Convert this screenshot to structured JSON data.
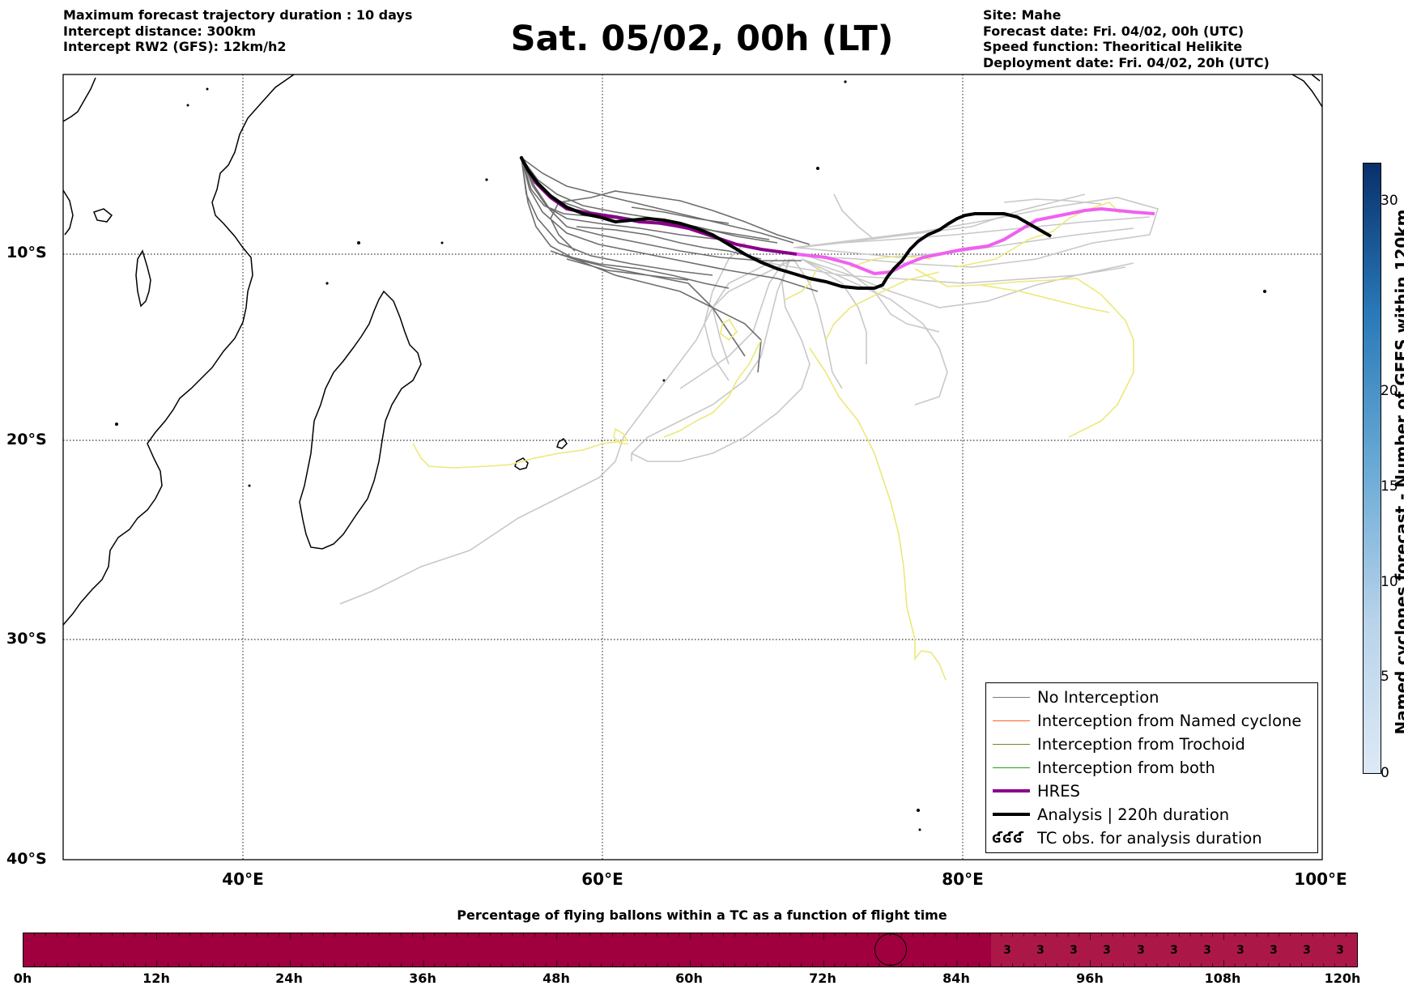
{
  "header": {
    "left": [
      "Maximum forecast trajectory duration : 10 days",
      "Intercept distance: 300km",
      "Intercept RW2 (GFS):  12km/h2"
    ],
    "title": "Sat. 05/02, 00h (LT)",
    "right": [
      "Site: Mahe",
      "Forecast date: Fri. 04/02, 00h (UTC)",
      "Speed function: Theoritical Helikite",
      "Deployment date: Fri. 04/02, 20h (UTC)"
    ]
  },
  "map": {
    "lat_labels": [
      "10°S",
      "20°S",
      "30°S",
      "40°S"
    ],
    "lon_labels": [
      "40°E",
      "60°E",
      "80°E",
      "100°E"
    ],
    "colors": {
      "no_interception": "#7a7a7a",
      "no_interception_light": "#c8c8c8",
      "trochoid": "#ece87a",
      "hres": "#8b008b",
      "hres_later": "#f060f0",
      "analysis": "#000000"
    }
  },
  "legend": {
    "items": [
      {
        "label": "No Interception",
        "color": "#7a7a7a"
      },
      {
        "label": "Interception from Named cyclone",
        "color": "#ff6020"
      },
      {
        "label": "Interception from Trochoid",
        "color": "#808020"
      },
      {
        "label": "Interception from both",
        "color": "#20a020"
      },
      {
        "label": "HRES",
        "color": "#8b008b"
      },
      {
        "label": "Analysis | 220h duration",
        "color": "#000000"
      },
      {
        "label": "TC obs. for analysis duration",
        "icon": "cyclone-icon",
        "symbol": "ʛʛʛ"
      }
    ]
  },
  "colorbar": {
    "label": "Named cyclones forecast - Number of GEFS within 120km",
    "ticks": [
      "0",
      "5",
      "10",
      "15",
      "20",
      "30"
    ],
    "colors": [
      "#dde9f6",
      "#08306b"
    ]
  },
  "progress": {
    "title": "Percentage of flying ballons within a TC as a function of flight time",
    "ticks": [
      "0h",
      "12h",
      "24h",
      "36h",
      "48h",
      "60h",
      "72h",
      "84h",
      "96h",
      "108h",
      "120h"
    ],
    "cell_values": [
      "3",
      "3",
      "3",
      "3",
      "3",
      "3",
      "3",
      "3",
      "3",
      "3",
      "3"
    ],
    "current_hour": 78,
    "colors": {
      "base": "#a0003e",
      "cells": "#ab1848"
    }
  }
}
